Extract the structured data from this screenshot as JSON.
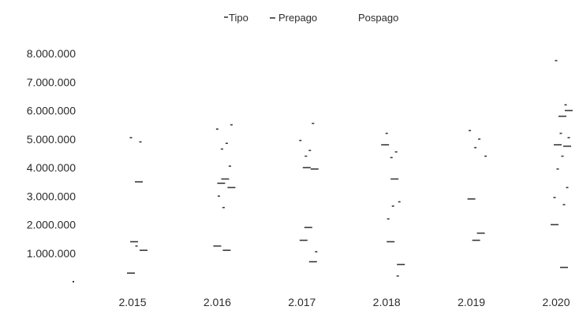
{
  "chart_data": {
    "type": "scatter",
    "title": "",
    "xlabel": "",
    "ylabel": "",
    "legend": {
      "position": "top-center",
      "title": "Tipo",
      "entries": [
        "Prepago",
        "Pospago"
      ]
    },
    "x_ticks": [
      "2.015",
      "2.016",
      "2.017",
      "2.018",
      "2.019",
      "2.020"
    ],
    "y_ticks": [
      "1.000.000",
      "2.000.000",
      "3.000.000",
      "4.000.000",
      "5.000.000",
      "6.000.000",
      "7.000.000",
      "8.000.000"
    ],
    "ylim": [
      0,
      8000000
    ],
    "grid": false,
    "colors": {
      "marks": "#3a3a3a",
      "text": "#2b2b2b"
    },
    "series": [
      {
        "name": "Prepago",
        "points": [
          [
            2015,
            3500000
          ],
          [
            2015,
            1400000
          ],
          [
            2015,
            1100000
          ],
          [
            2015,
            300000
          ],
          [
            2016,
            3600000
          ],
          [
            2016,
            3450000
          ],
          [
            2016,
            3300000
          ],
          [
            2016,
            1250000
          ],
          [
            2016,
            1100000
          ],
          [
            2017,
            4000000
          ],
          [
            2017,
            3950000
          ],
          [
            2017,
            1900000
          ],
          [
            2017,
            1450000
          ],
          [
            2017,
            700000
          ],
          [
            2018,
            4800000
          ],
          [
            2018,
            3600000
          ],
          [
            2018,
            1400000
          ],
          [
            2018,
            600000
          ],
          [
            2019,
            2900000
          ],
          [
            2019,
            1700000
          ],
          [
            2019,
            1450000
          ],
          [
            2020,
            6000000
          ],
          [
            2020,
            5800000
          ],
          [
            2020,
            4800000
          ],
          [
            2020,
            4750000
          ],
          [
            2020,
            2000000
          ],
          [
            2020,
            500000
          ]
        ]
      },
      {
        "name": "Pospago",
        "points": [
          [
            2015,
            5050000
          ],
          [
            2015,
            4900000
          ],
          [
            2015,
            1250000
          ],
          [
            2016,
            5500000
          ],
          [
            2016,
            5350000
          ],
          [
            2016,
            4850000
          ],
          [
            2016,
            4650000
          ],
          [
            2016,
            4050000
          ],
          [
            2016,
            2600000
          ],
          [
            2016,
            3000000
          ],
          [
            2017,
            5550000
          ],
          [
            2017,
            4950000
          ],
          [
            2017,
            4600000
          ],
          [
            2017,
            4400000
          ],
          [
            2017,
            1050000
          ],
          [
            2018,
            5200000
          ],
          [
            2018,
            4550000
          ],
          [
            2018,
            4350000
          ],
          [
            2018,
            2800000
          ],
          [
            2018,
            2650000
          ],
          [
            2018,
            2200000
          ],
          [
            2018,
            200000
          ],
          [
            2019,
            5300000
          ],
          [
            2019,
            5000000
          ],
          [
            2019,
            4700000
          ],
          [
            2019,
            4400000
          ],
          [
            2020,
            7750000
          ],
          [
            2020,
            6200000
          ],
          [
            2020,
            5200000
          ],
          [
            2020,
            5050000
          ],
          [
            2020,
            4400000
          ],
          [
            2020,
            3950000
          ],
          [
            2020,
            3300000
          ],
          [
            2020,
            2950000
          ],
          [
            2020,
            2700000
          ]
        ]
      }
    ]
  }
}
